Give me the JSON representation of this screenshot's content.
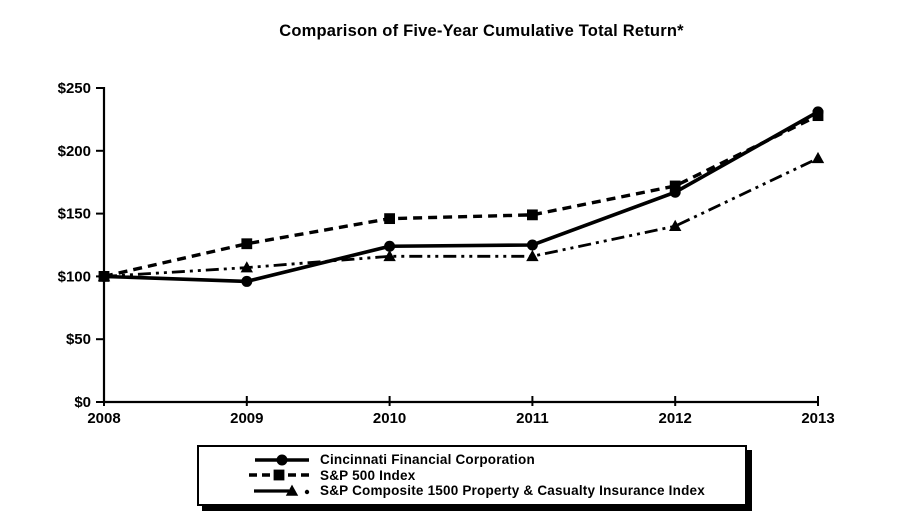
{
  "page": {
    "background": "#ffffff",
    "foreground": "#000000"
  },
  "chart_data": {
    "type": "line",
    "title": "Comparison of Five-Year Cumulative Total Return*",
    "xlabel": "",
    "ylabel": "",
    "categories": [
      "2008",
      "2009",
      "2010",
      "2011",
      "2012",
      "2013"
    ],
    "series": [
      {
        "name": "Cincinnati Financial Corporation",
        "slug": "cincinnati-financial-corporation",
        "values": [
          100,
          96,
          124,
          125,
          167,
          231
        ],
        "line": "solid",
        "marker": "circle"
      },
      {
        "name": "S&P 500 Index",
        "slug": "sp-500-index",
        "values": [
          100,
          126,
          146,
          149,
          172,
          228
        ],
        "line": "dashed",
        "marker": "square"
      },
      {
        "name": "S&P Composite 1500 Property & Casualty Insurance Index",
        "slug": "sp-composite-1500-property-casualty-insurance-index",
        "values": [
          100,
          107,
          116,
          116,
          140,
          194
        ],
        "line": "dashdotdot",
        "marker": "triangle"
      }
    ],
    "ylim": [
      0,
      250
    ],
    "y_tick_step": 50,
    "y_ticks": [
      "$0",
      "$50",
      "$100",
      "$150",
      "$200",
      "$250"
    ],
    "grid": false,
    "legend_position": "bottom",
    "color": "#000000"
  }
}
